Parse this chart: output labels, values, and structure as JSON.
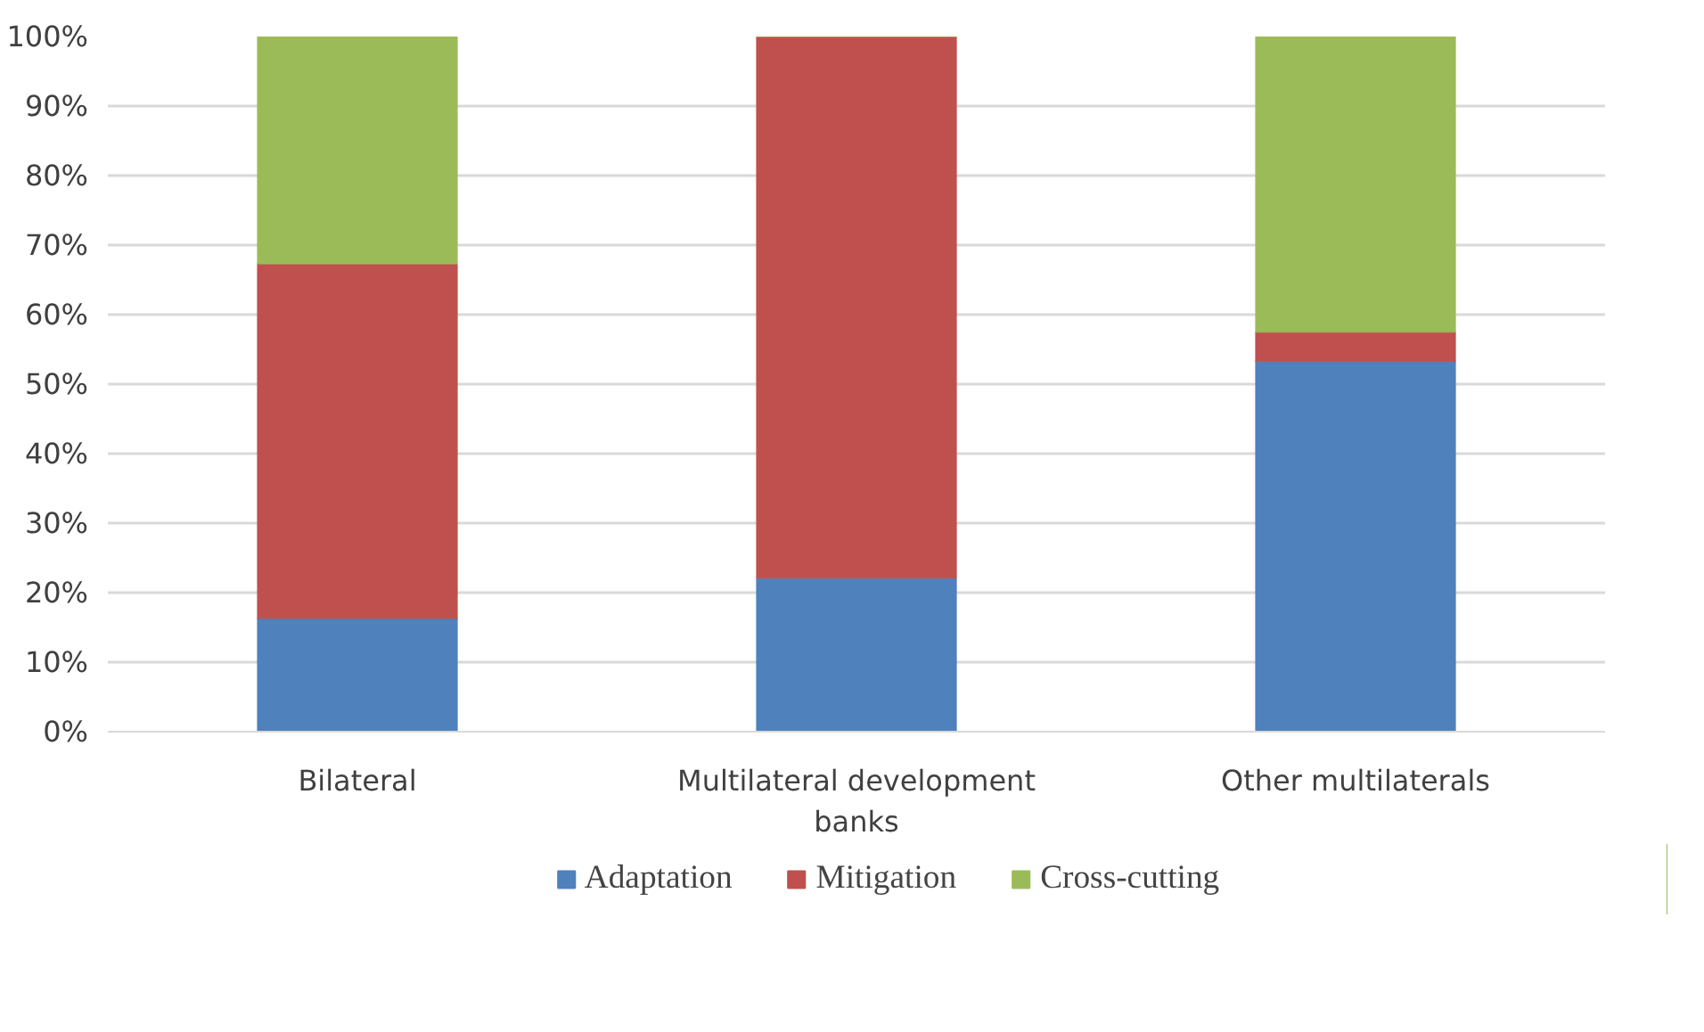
{
  "chart_data": {
    "type": "bar",
    "stacked": true,
    "categories": [
      "Bilateral",
      "Multilateral development banks",
      "Other multilaterals"
    ],
    "series": [
      {
        "name": "Adaptation",
        "color": "#4f81bd",
        "values": [
          16.3,
          22.1,
          53.3
        ]
      },
      {
        "name": "Mitigation",
        "color": "#c0504d",
        "values": [
          51.0,
          77.9,
          4.2
        ]
      },
      {
        "name": "Cross-cutting",
        "color": "#9bbb59",
        "values": [
          32.7,
          0,
          42.5
        ]
      }
    ],
    "ylim": [
      0,
      100
    ],
    "yticks": [
      {
        "value": 0,
        "label": "0%"
      },
      {
        "value": 10,
        "label": "10%"
      },
      {
        "value": 20,
        "label": "20%"
      },
      {
        "value": 30,
        "label": "30%"
      },
      {
        "value": 40,
        "label": "40%"
      },
      {
        "value": 50,
        "label": "50%"
      },
      {
        "value": 60,
        "label": "60%"
      },
      {
        "value": 70,
        "label": "70%"
      },
      {
        "value": 80,
        "label": "80%"
      },
      {
        "value": 90,
        "label": "90%"
      },
      {
        "value": 100,
        "label": "100%"
      }
    ],
    "grid": "y",
    "legend": "bottom"
  }
}
